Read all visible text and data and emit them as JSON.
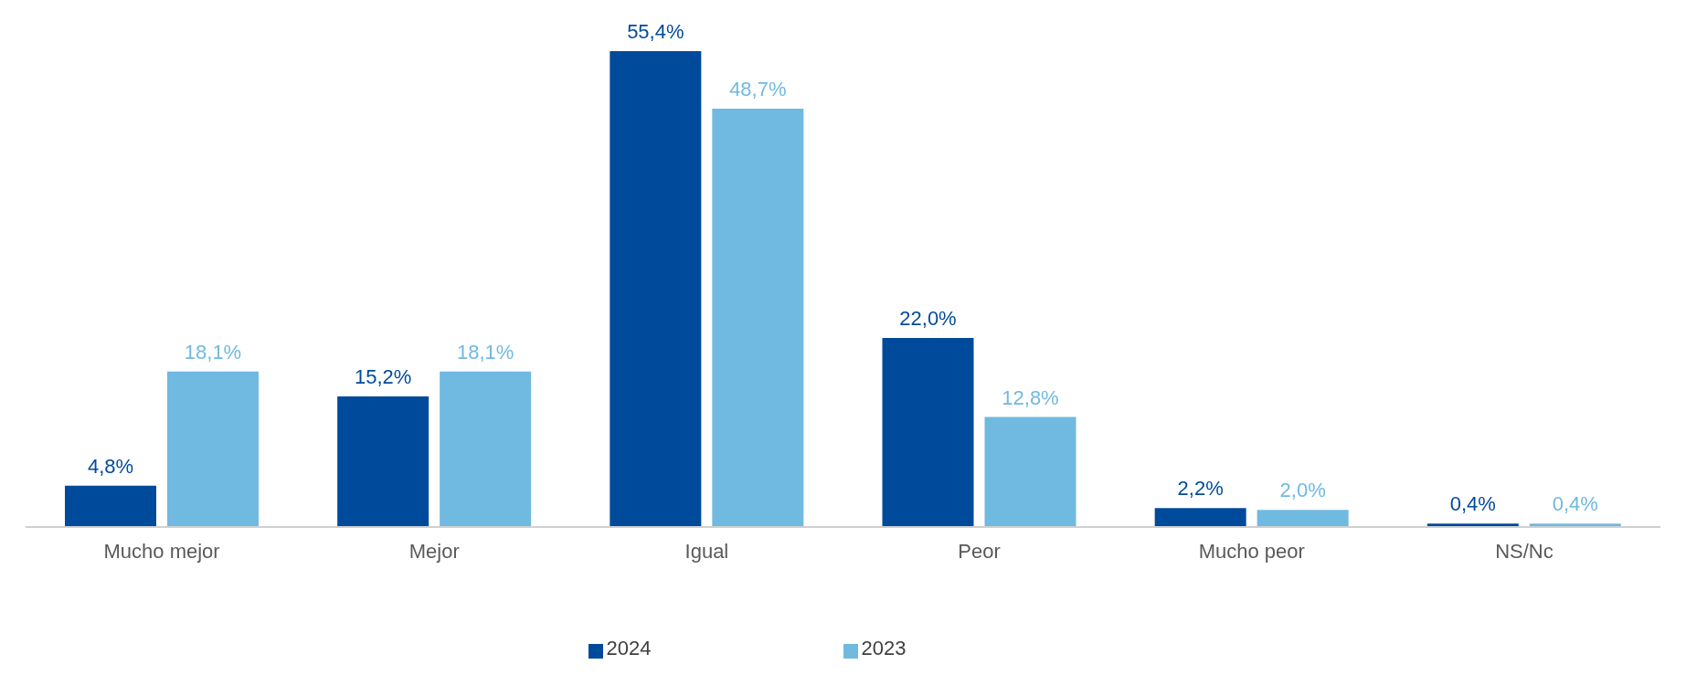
{
  "chart_data": {
    "type": "bar",
    "categories": [
      "Mucho mejor",
      "Mejor",
      "Igual",
      "Peor",
      "Mucho peor",
      "NS/Nc"
    ],
    "series": [
      {
        "name": "2024",
        "color": "#004a9b",
        "values": [
          4.8,
          15.2,
          55.4,
          22.0,
          2.2,
          0.4
        ],
        "value_labels": [
          "4,8%",
          "15,2%",
          "55,4%",
          "22,0%",
          "2,2%",
          "0,4%"
        ]
      },
      {
        "name": "2023",
        "color": "#70b9e0",
        "values": [
          18.1,
          18.1,
          48.7,
          12.8,
          2.0,
          0.4
        ],
        "value_labels": [
          "18,1%",
          "18,1%",
          "48,7%",
          "12,8%",
          "2,0%",
          "0,4%"
        ]
      }
    ],
    "legend": "bottom",
    "grid": false
  }
}
